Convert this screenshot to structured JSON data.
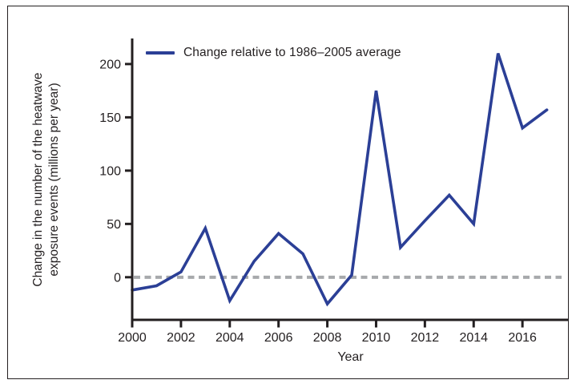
{
  "figure": {
    "legend": {
      "label": "Change relative to 1986–2005 average"
    },
    "x_axis_label": "Year",
    "y_axis_label_line1": "Change in the number of the heatwave",
    "y_axis_label_line2": "exposure events (millions per year)"
  },
  "colors": {
    "line": "#2b3f96",
    "zero_reference": "#a7a9ac",
    "axis": "#231f20",
    "text": "#231f20",
    "background": "#ffffff"
  },
  "chart_data": {
    "type": "line",
    "title": "",
    "xlabel": "Year",
    "ylabel": "Change in the number of the heatwave exposure events (millions per year)",
    "legend_position": "top-left",
    "grid": false,
    "x": [
      2000,
      2001,
      2002,
      2003,
      2004,
      2005,
      2006,
      2007,
      2008,
      2009,
      2010,
      2011,
      2012,
      2013,
      2014,
      2015,
      2016,
      2017
    ],
    "series": [
      {
        "name": "Change relative to 1986–2005 average",
        "color": "#2b3f96",
        "values": [
          -12,
          -8,
          5,
          46,
          -22,
          15,
          41,
          22,
          -25,
          2,
          175,
          28,
          53,
          77,
          50,
          210,
          140,
          157
        ]
      }
    ],
    "x_ticks": [
      2000,
      2002,
      2004,
      2006,
      2008,
      2010,
      2012,
      2014,
      2016
    ],
    "y_ticks": [
      0,
      50,
      100,
      150,
      200
    ],
    "xlim": [
      2000,
      2017.9
    ],
    "ylim": [
      -40,
      230
    ],
    "zero_reference_line": {
      "y": 0,
      "style": "dashed",
      "color": "#a7a9ac"
    }
  }
}
